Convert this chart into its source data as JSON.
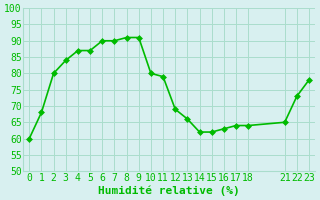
{
  "x": [
    0,
    1,
    2,
    3,
    4,
    5,
    6,
    7,
    8,
    9,
    10,
    11,
    12,
    13,
    14,
    15,
    16,
    17,
    18,
    21,
    22,
    23
  ],
  "y": [
    60,
    68,
    80,
    84,
    87,
    87,
    90,
    90,
    91,
    91,
    80,
    79,
    69,
    66,
    62,
    62,
    63,
    64,
    64,
    65,
    73,
    78
  ],
  "line_color": "#00bb00",
  "marker_color": "#00bb00",
  "bg_color": "#d8f0f0",
  "grid_color": "#aaddcc",
  "xlabel": "Humidité relative (%)",
  "xlabel_color": "#00bb00",
  "xlabel_fontsize": 8,
  "tick_color": "#00bb00",
  "tick_fontsize": 7,
  "ylim": [
    50,
    100
  ],
  "yticks": [
    50,
    55,
    60,
    65,
    70,
    75,
    80,
    85,
    90,
    95,
    100
  ],
  "xticks": [
    0,
    1,
    2,
    3,
    4,
    5,
    6,
    7,
    8,
    9,
    10,
    11,
    12,
    13,
    14,
    15,
    16,
    17,
    18,
    21,
    22,
    23
  ],
  "xtick_labels": [
    "0",
    "1",
    "2",
    "3",
    "4",
    "5",
    "6",
    "7",
    "8",
    "9",
    "10",
    "11",
    "12",
    "13",
    "14",
    "15",
    "16",
    "17",
    "18",
    "21",
    "22",
    "23"
  ]
}
